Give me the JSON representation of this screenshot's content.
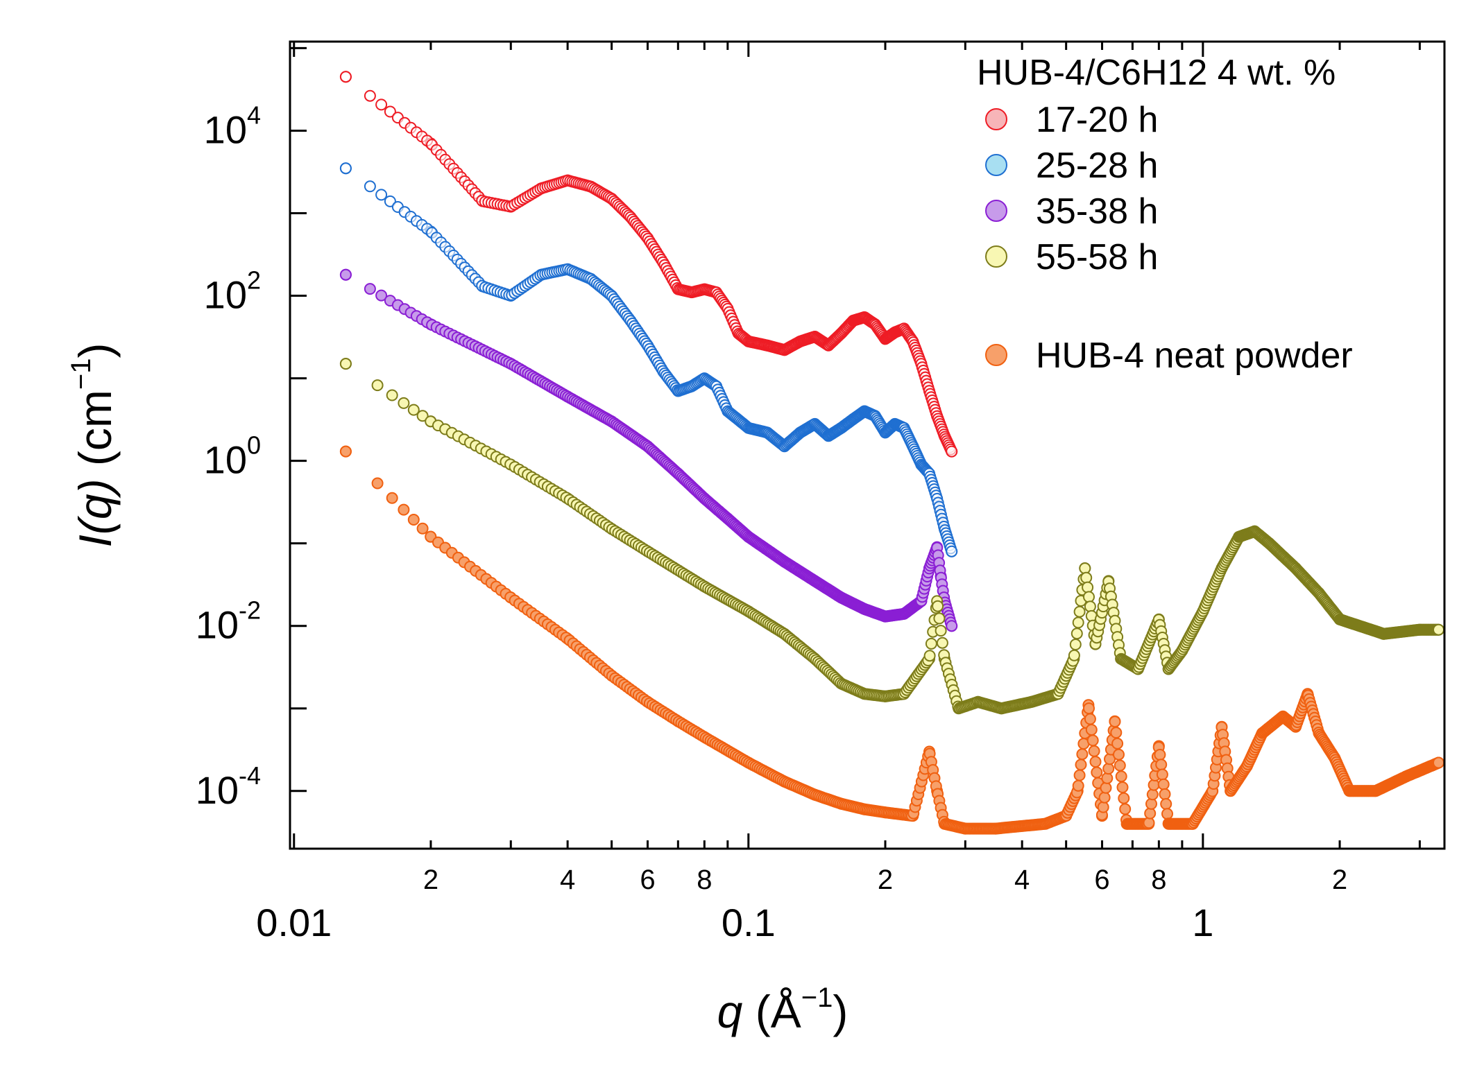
{
  "chart_data": {
    "type": "scatter",
    "x_scale": "log",
    "y_scale": "log",
    "xlim": [
      0.0098,
      3.4
    ],
    "ylim": [
      2e-05,
      120000
    ],
    "xlabel": {
      "symbol": "q",
      "unit_open": " (Å",
      "unit_exp": "−1",
      "unit_close": ")"
    },
    "ylabel": {
      "symbol": "I(q)",
      "unit_open": " (cm",
      "unit_exp": "−1",
      "unit_close": ")"
    },
    "x_major_ticks": [
      {
        "value": 0.01,
        "label": "0.01"
      },
      {
        "value": 0.1,
        "label": "0.1"
      },
      {
        "value": 1,
        "label": "1"
      }
    ],
    "x_minor_ticks": [
      {
        "value": 0.02,
        "label": "2"
      },
      {
        "value": 0.03,
        "label": ""
      },
      {
        "value": 0.04,
        "label": "4"
      },
      {
        "value": 0.05,
        "label": ""
      },
      {
        "value": 0.06,
        "label": "6"
      },
      {
        "value": 0.07,
        "label": ""
      },
      {
        "value": 0.08,
        "label": "8"
      },
      {
        "value": 0.09,
        "label": ""
      },
      {
        "value": 0.2,
        "label": "2"
      },
      {
        "value": 0.3,
        "label": ""
      },
      {
        "value": 0.4,
        "label": "4"
      },
      {
        "value": 0.5,
        "label": ""
      },
      {
        "value": 0.6,
        "label": "6"
      },
      {
        "value": 0.7,
        "label": ""
      },
      {
        "value": 0.8,
        "label": "8"
      },
      {
        "value": 0.9,
        "label": ""
      },
      {
        "value": 2,
        "label": "2"
      },
      {
        "value": 3,
        "label": ""
      }
    ],
    "y_major_ticks": [
      {
        "exp": -4,
        "base": "10",
        "sup": "-4"
      },
      {
        "exp": -2,
        "base": "10",
        "sup": "-2"
      },
      {
        "exp": 0,
        "base": "10",
        "sup": "0"
      },
      {
        "exp": 2,
        "base": "10",
        "sup": "2"
      },
      {
        "exp": 4,
        "base": "10",
        "sup": "4"
      }
    ],
    "y_minor_ticks": [
      -3,
      -1,
      1,
      3,
      5
    ],
    "legend": {
      "title": "HUB-4/C6H12 4 wt. %",
      "placement": "top-right",
      "entries": [
        {
          "label": "17-20 h",
          "series": 0
        },
        {
          "label": "25-28 h",
          "series": 1
        },
        {
          "label": "35-38 h",
          "series": 2
        },
        {
          "label": "55-58 h",
          "series": 3
        },
        {
          "label": "HUB-4 neat powder",
          "series": 4
        }
      ]
    },
    "series": [
      {
        "name": "17-20 h",
        "face": "#f7b5b8",
        "edge": "#ee1c25",
        "hollow": true,
        "points": [
          [
            0.013,
            45000
          ],
          [
            0.02,
            7000
          ],
          [
            0.026,
            1400
          ],
          [
            0.03,
            1200
          ],
          [
            0.035,
            2000
          ],
          [
            0.04,
            2500
          ],
          [
            0.045,
            2100
          ],
          [
            0.05,
            1500
          ],
          [
            0.055,
            900
          ],
          [
            0.06,
            500
          ],
          [
            0.065,
            250
          ],
          [
            0.07,
            120
          ],
          [
            0.075,
            110
          ],
          [
            0.08,
            120
          ],
          [
            0.085,
            110
          ],
          [
            0.09,
            70
          ],
          [
            0.095,
            35
          ],
          [
            0.1,
            28
          ],
          [
            0.11,
            25
          ],
          [
            0.12,
            22
          ],
          [
            0.13,
            28
          ],
          [
            0.14,
            32
          ],
          [
            0.15,
            25
          ],
          [
            0.16,
            35
          ],
          [
            0.17,
            50
          ],
          [
            0.18,
            55
          ],
          [
            0.19,
            45
          ],
          [
            0.2,
            30
          ],
          [
            0.21,
            36
          ],
          [
            0.22,
            40
          ],
          [
            0.23,
            28
          ],
          [
            0.24,
            15
          ],
          [
            0.25,
            7
          ],
          [
            0.26,
            3.5
          ],
          [
            0.27,
            2
          ],
          [
            0.28,
            1.3
          ]
        ]
      },
      {
        "name": "25-28 h",
        "face": "#a8dff2",
        "edge": "#1f6fd1",
        "hollow": true,
        "points": [
          [
            0.013,
            3500
          ],
          [
            0.02,
            600
          ],
          [
            0.026,
            130
          ],
          [
            0.03,
            100
          ],
          [
            0.035,
            180
          ],
          [
            0.04,
            210
          ],
          [
            0.045,
            160
          ],
          [
            0.05,
            100
          ],
          [
            0.055,
            50
          ],
          [
            0.06,
            25
          ],
          [
            0.065,
            12
          ],
          [
            0.07,
            7
          ],
          [
            0.075,
            8
          ],
          [
            0.08,
            10
          ],
          [
            0.085,
            8
          ],
          [
            0.09,
            4
          ],
          [
            0.1,
            2.5
          ],
          [
            0.11,
            2.2
          ],
          [
            0.12,
            1.5
          ],
          [
            0.13,
            2.2
          ],
          [
            0.14,
            2.8
          ],
          [
            0.15,
            2
          ],
          [
            0.16,
            2.5
          ],
          [
            0.17,
            3.2
          ],
          [
            0.18,
            4
          ],
          [
            0.19,
            3.5
          ],
          [
            0.2,
            2.2
          ],
          [
            0.21,
            2.8
          ],
          [
            0.22,
            2.5
          ],
          [
            0.23,
            1.5
          ],
          [
            0.24,
            0.9
          ],
          [
            0.25,
            0.7
          ],
          [
            0.26,
            0.35
          ],
          [
            0.27,
            0.15
          ],
          [
            0.28,
            0.08
          ]
        ]
      },
      {
        "name": "35-38 h",
        "face": "#c79bea",
        "edge": "#8a1ed4",
        "hollow": false,
        "points": [
          [
            0.013,
            180
          ],
          [
            0.02,
            45
          ],
          [
            0.03,
            15
          ],
          [
            0.04,
            6
          ],
          [
            0.05,
            3
          ],
          [
            0.06,
            1.5
          ],
          [
            0.07,
            0.7
          ],
          [
            0.08,
            0.35
          ],
          [
            0.09,
            0.2
          ],
          [
            0.1,
            0.12
          ],
          [
            0.12,
            0.06
          ],
          [
            0.14,
            0.035
          ],
          [
            0.16,
            0.022
          ],
          [
            0.18,
            0.016
          ],
          [
            0.2,
            0.013
          ],
          [
            0.22,
            0.014
          ],
          [
            0.24,
            0.02
          ],
          [
            0.25,
            0.05
          ],
          [
            0.26,
            0.09
          ],
          [
            0.265,
            0.04
          ],
          [
            0.27,
            0.02
          ],
          [
            0.28,
            0.01
          ]
        ]
      },
      {
        "name": "55-58 h",
        "face": "#f8f7b3",
        "edge": "#7d7c1a",
        "hollow": false,
        "points": [
          [
            0.013,
            15
          ],
          [
            0.02,
            3
          ],
          [
            0.03,
            0.9
          ],
          [
            0.04,
            0.35
          ],
          [
            0.05,
            0.15
          ],
          [
            0.06,
            0.08
          ],
          [
            0.08,
            0.03
          ],
          [
            0.1,
            0.015
          ],
          [
            0.12,
            0.008
          ],
          [
            0.14,
            0.004
          ],
          [
            0.16,
            0.002
          ],
          [
            0.18,
            0.0015
          ],
          [
            0.2,
            0.0014
          ],
          [
            0.22,
            0.0015
          ],
          [
            0.25,
            0.004
          ],
          [
            0.26,
            0.02
          ],
          [
            0.27,
            0.004
          ],
          [
            0.29,
            0.001
          ],
          [
            0.32,
            0.0012
          ],
          [
            0.36,
            0.001
          ],
          [
            0.42,
            0.0012
          ],
          [
            0.48,
            0.0015
          ],
          [
            0.52,
            0.004
          ],
          [
            0.55,
            0.05
          ],
          [
            0.58,
            0.006
          ],
          [
            0.62,
            0.035
          ],
          [
            0.66,
            0.004
          ],
          [
            0.72,
            0.003
          ],
          [
            0.8,
            0.012
          ],
          [
            0.84,
            0.003
          ],
          [
            0.9,
            0.005
          ],
          [
            1.0,
            0.015
          ],
          [
            1.1,
            0.05
          ],
          [
            1.2,
            0.12
          ],
          [
            1.3,
            0.14
          ],
          [
            1.4,
            0.1
          ],
          [
            1.6,
            0.05
          ],
          [
            1.8,
            0.025
          ],
          [
            2.0,
            0.012
          ],
          [
            2.5,
            0.008
          ],
          [
            3.0,
            0.009
          ],
          [
            3.3,
            0.009
          ]
        ]
      },
      {
        "name": "HUB-4 neat powder",
        "face": "#f7a06a",
        "edge": "#f06010",
        "hollow": false,
        "points": [
          [
            0.013,
            1.3
          ],
          [
            0.02,
            0.12
          ],
          [
            0.03,
            0.022
          ],
          [
            0.04,
            0.007
          ],
          [
            0.05,
            0.0025
          ],
          [
            0.06,
            0.0012
          ],
          [
            0.07,
            0.0007
          ],
          [
            0.08,
            0.00045
          ],
          [
            0.1,
            0.00022
          ],
          [
            0.12,
            0.00013
          ],
          [
            0.14,
            9e-05
          ],
          [
            0.16,
            7e-05
          ],
          [
            0.18,
            6e-05
          ],
          [
            0.2,
            5.5e-05
          ],
          [
            0.23,
            5e-05
          ],
          [
            0.25,
            0.0003
          ],
          [
            0.26,
            0.0001
          ],
          [
            0.27,
            4e-05
          ],
          [
            0.3,
            3.5e-05
          ],
          [
            0.35,
            3.5e-05
          ],
          [
            0.45,
            4e-05
          ],
          [
            0.5,
            5e-05
          ],
          [
            0.53,
            0.0001
          ],
          [
            0.56,
            0.0011
          ],
          [
            0.6,
            5e-05
          ],
          [
            0.64,
            0.0007
          ],
          [
            0.68,
            4e-05
          ],
          [
            0.76,
            4e-05
          ],
          [
            0.8,
            0.00035
          ],
          [
            0.84,
            4e-05
          ],
          [
            0.95,
            4e-05
          ],
          [
            1.05,
            0.0001
          ],
          [
            1.1,
            0.0006
          ],
          [
            1.15,
            0.0001
          ],
          [
            1.25,
            0.0002
          ],
          [
            1.35,
            0.0005
          ],
          [
            1.5,
            0.0008
          ],
          [
            1.6,
            0.0006
          ],
          [
            1.7,
            0.0015
          ],
          [
            1.8,
            0.0005
          ],
          [
            1.95,
            0.00025
          ],
          [
            2.1,
            0.0001
          ],
          [
            2.4,
            0.0001
          ],
          [
            2.8,
            0.00015
          ],
          [
            3.3,
            0.00022
          ]
        ]
      }
    ]
  }
}
